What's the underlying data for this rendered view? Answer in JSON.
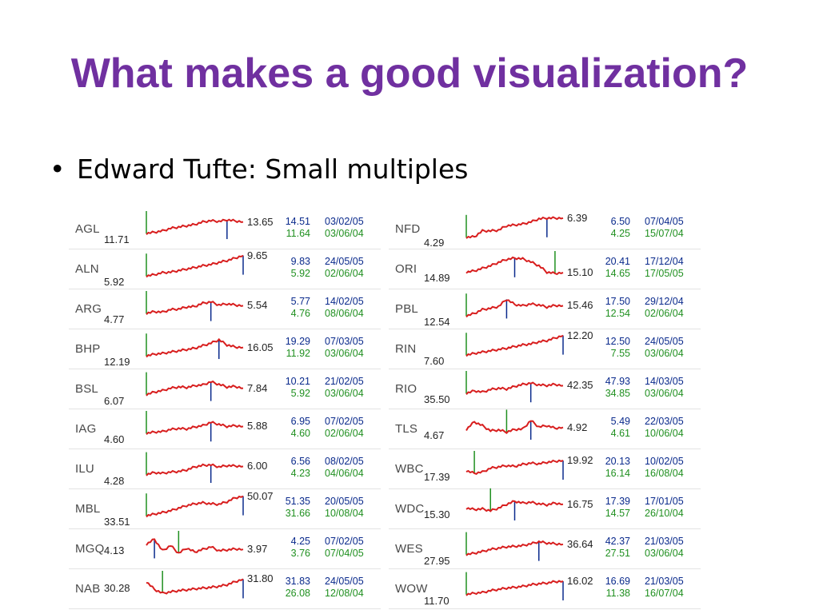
{
  "slide": {
    "title": "What makes a good visualization?",
    "bullet": "Edward Tufte: Small multiples",
    "bullet_glyph": "•"
  },
  "colors": {
    "title": "#7030a0",
    "line": "#d81e1e",
    "high": "#0a2a8c",
    "low": "#209020"
  },
  "stocks": [
    {
      "ticker": "AGL",
      "start": "11.71",
      "end": "13.65",
      "high": "14.51",
      "high_date": "03/02/05",
      "low": "11.64",
      "low_date": "03/06/04"
    },
    {
      "ticker": "ALN",
      "start": "5.92",
      "end": "9.65",
      "high": "9.83",
      "high_date": "24/05/05",
      "low": "5.92",
      "low_date": "02/06/04"
    },
    {
      "ticker": "ARG",
      "start": "4.77",
      "end": "5.54",
      "high": "5.77",
      "high_date": "14/02/05",
      "low": "4.76",
      "low_date": "08/06/04"
    },
    {
      "ticker": "BHP",
      "start": "12.19",
      "end": "16.05",
      "high": "19.29",
      "high_date": "07/03/05",
      "low": "11.92",
      "low_date": "03/06/04"
    },
    {
      "ticker": "BSL",
      "start": "6.07",
      "end": "7.84",
      "high": "10.21",
      "high_date": "21/02/05",
      "low": "5.92",
      "low_date": "03/06/04"
    },
    {
      "ticker": "IAG",
      "start": "4.60",
      "end": "5.88",
      "high": "6.95",
      "high_date": "07/02/05",
      "low": "4.60",
      "low_date": "02/06/04"
    },
    {
      "ticker": "ILU",
      "start": "4.28",
      "end": "6.00",
      "high": "6.56",
      "high_date": "08/02/05",
      "low": "4.23",
      "low_date": "04/06/04"
    },
    {
      "ticker": "MBL",
      "start": "33.51",
      "end": "50.07",
      "high": "51.35",
      "high_date": "20/05/05",
      "low": "31.66",
      "low_date": "10/08/04"
    },
    {
      "ticker": "MGQ",
      "start": "4.13",
      "end": "3.97",
      "high": "4.25",
      "high_date": "07/02/05",
      "low": "3.76",
      "low_date": "07/04/05"
    },
    {
      "ticker": "NAB",
      "start": "30.28",
      "end": "31.80",
      "high": "31.83",
      "high_date": "24/05/05",
      "low": "26.08",
      "low_date": "12/08/04"
    },
    {
      "ticker": "NFD",
      "start": "4.29",
      "end": "6.39",
      "high": "6.50",
      "high_date": "07/04/05",
      "low": "4.25",
      "low_date": "15/07/04"
    },
    {
      "ticker": "ORI",
      "start": "14.89",
      "end": "15.10",
      "high": "20.41",
      "high_date": "17/12/04",
      "low": "14.65",
      "low_date": "17/05/05"
    },
    {
      "ticker": "PBL",
      "start": "12.54",
      "end": "15.46",
      "high": "17.50",
      "high_date": "29/12/04",
      "low": "12.54",
      "low_date": "02/06/04"
    },
    {
      "ticker": "RIN",
      "start": "7.60",
      "end": "12.20",
      "high": "12.50",
      "high_date": "24/05/05",
      "low": "7.55",
      "low_date": "03/06/04"
    },
    {
      "ticker": "RIO",
      "start": "35.50",
      "end": "42.35",
      "high": "47.93",
      "high_date": "14/03/05",
      "low": "34.85",
      "low_date": "03/06/04"
    },
    {
      "ticker": "TLS",
      "start": "4.67",
      "end": "4.92",
      "high": "5.49",
      "high_date": "22/03/05",
      "low": "4.61",
      "low_date": "10/06/04"
    },
    {
      "ticker": "WBC",
      "start": "17.39",
      "end": "19.92",
      "high": "20.13",
      "high_date": "10/02/05",
      "low": "16.14",
      "low_date": "16/08/04"
    },
    {
      "ticker": "WDC",
      "start": "15.30",
      "end": "16.75",
      "high": "17.39",
      "high_date": "17/01/05",
      "low": "14.57",
      "low_date": "26/10/04"
    },
    {
      "ticker": "WES",
      "start": "27.95",
      "end": "36.64",
      "high": "42.37",
      "high_date": "21/03/05",
      "low": "27.51",
      "low_date": "03/06/04"
    },
    {
      "ticker": "WOW",
      "start": "11.70",
      "end": "16.02",
      "high": "16.69",
      "high_date": "21/03/05",
      "low": "11.38",
      "low_date": "16/07/04"
    }
  ]
}
